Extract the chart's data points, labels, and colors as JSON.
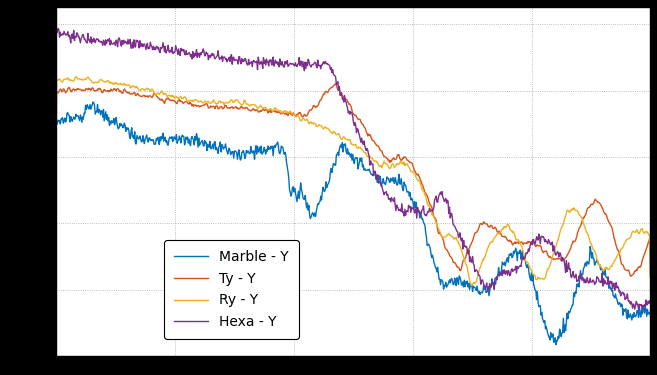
{
  "legend_labels": [
    "Marble - Y",
    "Ty - Y",
    "Ry - Y",
    "Hexa - Y"
  ],
  "colors": [
    "#0072bd",
    "#d95319",
    "#edb120",
    "#7e2f8e"
  ],
  "line_width": 1.0,
  "fig_bg_color": "#000000",
  "plot_bg_color": "#ffffff",
  "grid_color": "#aaaaaa"
}
